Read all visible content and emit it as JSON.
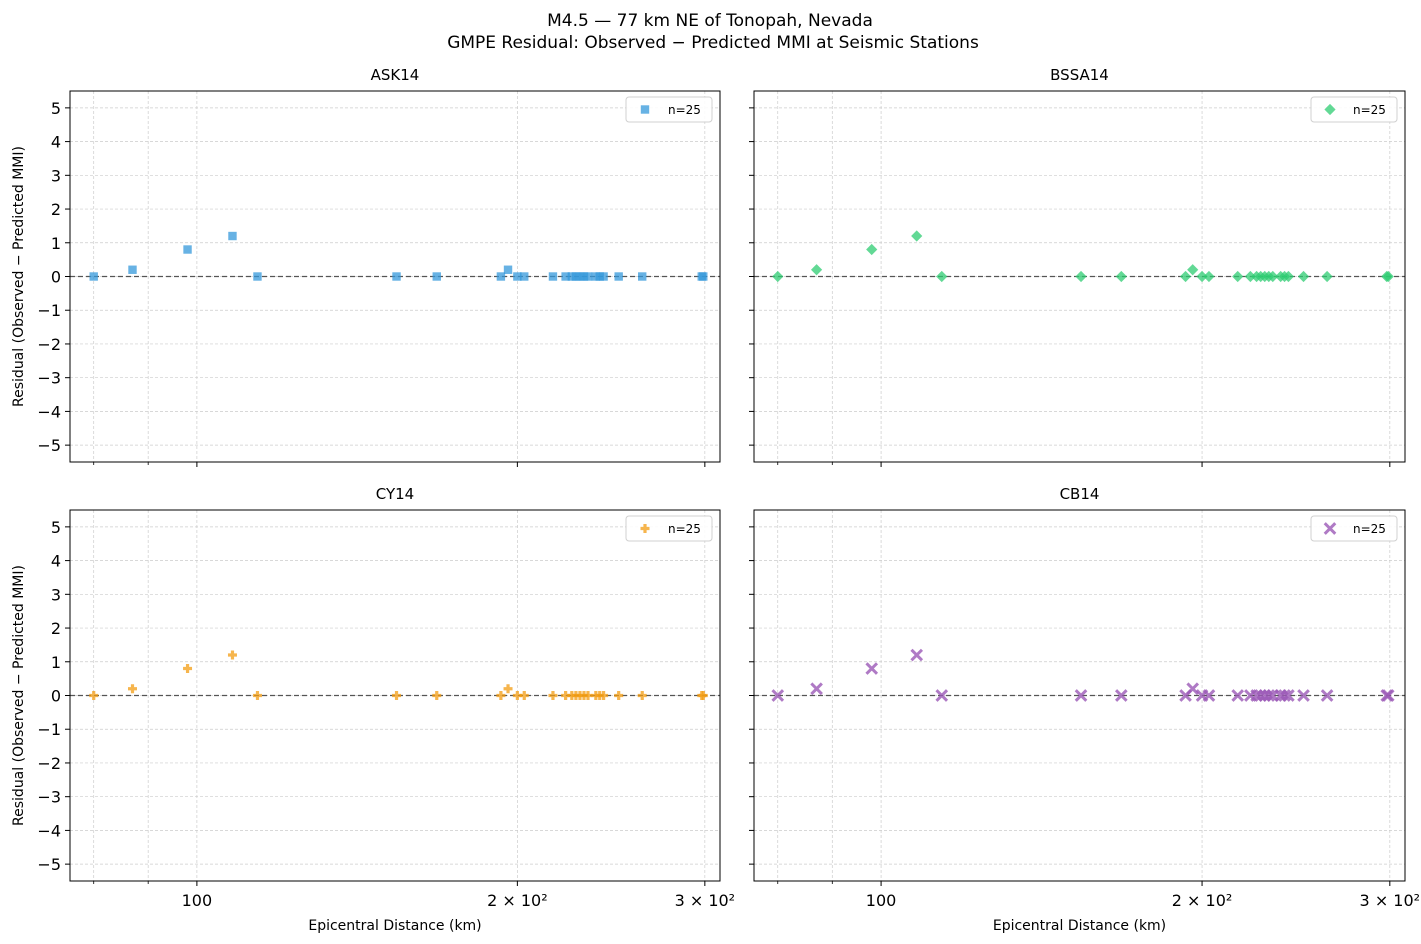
{
  "figure": {
    "title_line1": "M4.5 — 77 km NE of Tonopah, Nevada",
    "title_line2": "GMPE Residual: Observed − Predicted MMI at Seismic Stations"
  },
  "chart_data": [
    {
      "type": "scatter",
      "title": "ASK14",
      "xlabel": "",
      "ylabel": "Residual (Observed − Predicted MMI)",
      "xscale": "log",
      "xlim": [
        76,
        310
      ],
      "ylim": [
        -5.5,
        5.5
      ],
      "yticks": [
        "5",
        "4",
        "3",
        "2",
        "1",
        "0",
        "−1",
        "−2",
        "−3",
        "−4",
        "−5"
      ],
      "xticks": [],
      "grid": true,
      "reference_line": 0,
      "legend": "top-right",
      "series": [
        {
          "name": "n=25",
          "color": "#3498db",
          "marker": "square",
          "points": [
            [
              80,
              0
            ],
            [
              87,
              0.2
            ],
            [
              98,
              0.8
            ],
            [
              108,
              1.2
            ],
            [
              114,
              0
            ],
            [
              154,
              0
            ],
            [
              168,
              0
            ],
            [
              193,
              0
            ],
            [
              196,
              0.2
            ],
            [
              200,
              0
            ],
            [
              203,
              0
            ],
            [
              216,
              0
            ],
            [
              222,
              0
            ],
            [
              225,
              0
            ],
            [
              227,
              0
            ],
            [
              229,
              0
            ],
            [
              231,
              0
            ],
            [
              233,
              0
            ],
            [
              237,
              0
            ],
            [
              239,
              0
            ],
            [
              241,
              0
            ],
            [
              249,
              0
            ],
            [
              262,
              0
            ],
            [
              298,
              0
            ],
            [
              299,
              0
            ]
          ]
        }
      ]
    },
    {
      "type": "scatter",
      "title": "BSSA14",
      "xlabel": "",
      "ylabel": "",
      "xscale": "log",
      "xlim": [
        76,
        310
      ],
      "ylim": [
        -5.5,
        5.5
      ],
      "yticks": [],
      "xticks": [],
      "grid": true,
      "reference_line": 0,
      "legend": "top-right",
      "series": [
        {
          "name": "n=25",
          "color": "#2ecc71",
          "marker": "diamond",
          "points": [
            [
              80,
              0
            ],
            [
              87,
              0.2
            ],
            [
              98,
              0.8
            ],
            [
              108,
              1.2
            ],
            [
              114,
              0
            ],
            [
              154,
              0
            ],
            [
              168,
              0
            ],
            [
              193,
              0
            ],
            [
              196,
              0.2
            ],
            [
              200,
              0
            ],
            [
              203,
              0
            ],
            [
              216,
              0
            ],
            [
              222,
              0
            ],
            [
              225,
              0
            ],
            [
              227,
              0
            ],
            [
              229,
              0
            ],
            [
              231,
              0
            ],
            [
              233,
              0
            ],
            [
              237,
              0
            ],
            [
              239,
              0
            ],
            [
              241,
              0
            ],
            [
              249,
              0
            ],
            [
              262,
              0
            ],
            [
              298,
              0
            ],
            [
              299,
              0
            ]
          ]
        }
      ]
    },
    {
      "type": "scatter",
      "title": "CY14",
      "xlabel": "Epicentral Distance (km)",
      "ylabel": "Residual (Observed − Predicted MMI)",
      "xscale": "log",
      "xlim": [
        76,
        310
      ],
      "ylim": [
        -5.5,
        5.5
      ],
      "yticks": [
        "5",
        "4",
        "3",
        "2",
        "1",
        "0",
        "−1",
        "−2",
        "−3",
        "−4",
        "−5"
      ],
      "xticks": [
        "100",
        "2 × 10²",
        "3 × 10²"
      ],
      "grid": true,
      "reference_line": 0,
      "legend": "top-right",
      "series": [
        {
          "name": "n=25",
          "color": "#f39c12",
          "marker": "plus",
          "points": [
            [
              80,
              0
            ],
            [
              87,
              0.2
            ],
            [
              98,
              0.8
            ],
            [
              108,
              1.2
            ],
            [
              114,
              0
            ],
            [
              154,
              0
            ],
            [
              168,
              0
            ],
            [
              193,
              0
            ],
            [
              196,
              0.2
            ],
            [
              200,
              0
            ],
            [
              203,
              0
            ],
            [
              216,
              0
            ],
            [
              222,
              0
            ],
            [
              225,
              0
            ],
            [
              227,
              0
            ],
            [
              229,
              0
            ],
            [
              231,
              0
            ],
            [
              233,
              0
            ],
            [
              237,
              0
            ],
            [
              239,
              0
            ],
            [
              241,
              0
            ],
            [
              249,
              0
            ],
            [
              262,
              0
            ],
            [
              298,
              0
            ],
            [
              299,
              0
            ]
          ]
        }
      ]
    },
    {
      "type": "scatter",
      "title": "CB14",
      "xlabel": "Epicentral Distance (km)",
      "ylabel": "",
      "xscale": "log",
      "xlim": [
        76,
        310
      ],
      "ylim": [
        -5.5,
        5.5
      ],
      "yticks": [],
      "xticks": [
        "100",
        "2 × 10²",
        "3 × 10²"
      ],
      "grid": true,
      "reference_line": 0,
      "legend": "top-right",
      "series": [
        {
          "name": "n=25",
          "color": "#9b59b6",
          "marker": "x",
          "points": [
            [
              80,
              0
            ],
            [
              87,
              0.2
            ],
            [
              98,
              0.8
            ],
            [
              108,
              1.2
            ],
            [
              114,
              0
            ],
            [
              154,
              0
            ],
            [
              168,
              0
            ],
            [
              193,
              0
            ],
            [
              196,
              0.2
            ],
            [
              200,
              0
            ],
            [
              203,
              0
            ],
            [
              216,
              0
            ],
            [
              222,
              0
            ],
            [
              225,
              0
            ],
            [
              227,
              0
            ],
            [
              229,
              0
            ],
            [
              231,
              0
            ],
            [
              233,
              0
            ],
            [
              237,
              0
            ],
            [
              239,
              0
            ],
            [
              241,
              0
            ],
            [
              249,
              0
            ],
            [
              262,
              0
            ],
            [
              298,
              0
            ],
            [
              299,
              0
            ]
          ]
        }
      ]
    }
  ]
}
